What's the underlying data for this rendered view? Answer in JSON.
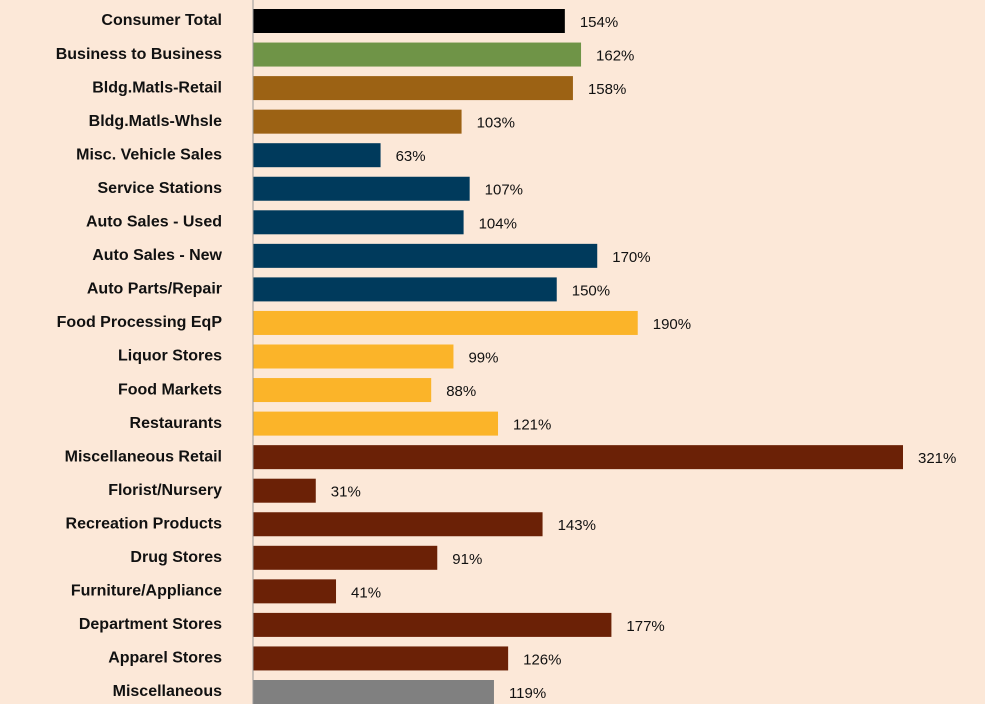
{
  "chart_data": {
    "type": "bar",
    "orientation": "horizontal",
    "categories": [
      "Consumer Total",
      "Business to Business",
      "Bldg.Matls-Retail",
      "Bldg.Matls-Whsle",
      "Misc. Vehicle Sales",
      "Service Stations",
      "Auto Sales - Used",
      "Auto Sales - New",
      "Auto Parts/Repair",
      "Food Processing EqP",
      "Liquor Stores",
      "Food Markets",
      "Restaurants",
      "Miscellaneous Retail",
      "Florist/Nursery",
      "Recreation Products",
      "Drug Stores",
      "Furniture/Appliance",
      "Department Stores",
      "Apparel Stores",
      "Miscellaneous"
    ],
    "values": [
      154,
      162,
      158,
      103,
      63,
      107,
      104,
      170,
      150,
      190,
      99,
      88,
      121,
      321,
      31,
      143,
      91,
      41,
      177,
      126,
      119
    ],
    "value_labels": [
      "154%",
      "162%",
      "158%",
      "103%",
      "63%",
      "107%",
      "104%",
      "170%",
      "150%",
      "190%",
      "99%",
      "88%",
      "121%",
      "321%",
      "31%",
      "143%",
      "91%",
      "41%",
      "177%",
      "126%",
      "119%"
    ],
    "colors": [
      "#000000",
      "#6f9447",
      "#9c6214",
      "#9c6214",
      "#003a5c",
      "#003a5c",
      "#003a5c",
      "#003a5c",
      "#003a5c",
      "#fbb429",
      "#fbb429",
      "#fbb429",
      "#fbb429",
      "#6b2106",
      "#6b2106",
      "#6b2106",
      "#6b2106",
      "#6b2106",
      "#6b2106",
      "#6b2106",
      "#808080"
    ]
  }
}
